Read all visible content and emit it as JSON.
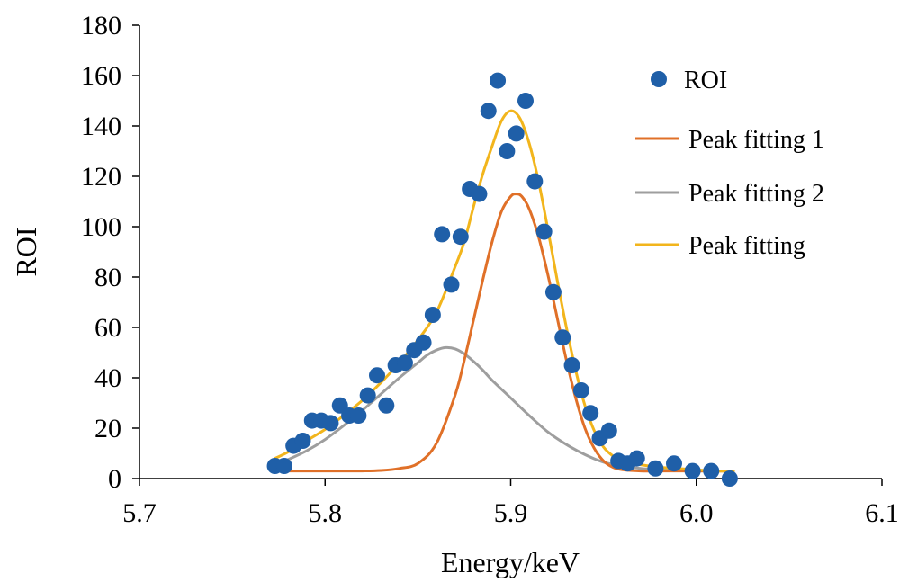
{
  "chart_data": {
    "type": "scatter",
    "xlabel": "Energy/keV",
    "ylabel": "ROI",
    "xlim": [
      5.7,
      6.1
    ],
    "ylim": [
      0,
      180
    ],
    "x_ticks": [
      "5.7",
      "5.8",
      "5.9",
      "6.0",
      "6.1"
    ],
    "y_ticks": [
      "0",
      "20",
      "40",
      "60",
      "80",
      "100",
      "120",
      "140",
      "160",
      "180"
    ],
    "grid": false,
    "legend_position": "top-right",
    "series": [
      {
        "name": "ROI",
        "kind": "scatter",
        "color": "#1f5fa8",
        "x": [
          5.773,
          5.778,
          5.783,
          5.788,
          5.793,
          5.798,
          5.803,
          5.808,
          5.813,
          5.818,
          5.823,
          5.828,
          5.833,
          5.838,
          5.843,
          5.848,
          5.853,
          5.858,
          5.863,
          5.868,
          5.873,
          5.878,
          5.883,
          5.888,
          5.893,
          5.898,
          5.903,
          5.908,
          5.913,
          5.918,
          5.923,
          5.928,
          5.933,
          5.938,
          5.943,
          5.948,
          5.953,
          5.958,
          5.963,
          5.968,
          5.978,
          5.988,
          5.998,
          6.008,
          6.018
        ],
        "y": [
          5,
          5,
          13,
          15,
          23,
          23,
          22,
          29,
          25,
          25,
          33,
          41,
          29,
          45,
          46,
          51,
          54,
          65,
          97,
          77,
          96,
          115,
          113,
          146,
          158,
          130,
          137,
          150,
          118,
          98,
          74,
          56,
          45,
          35,
          26,
          16,
          19,
          7,
          6,
          8,
          4,
          6,
          3,
          3,
          0
        ]
      },
      {
        "name": "Peak fitting 1",
        "kind": "line",
        "color": "#e07028",
        "x": [
          5.773,
          5.78,
          5.79,
          5.8,
          5.81,
          5.82,
          5.83,
          5.84,
          5.85,
          5.86,
          5.87,
          5.875,
          5.88,
          5.885,
          5.89,
          5.895,
          5.9,
          5.903,
          5.906,
          5.91,
          5.915,
          5.92,
          5.925,
          5.93,
          5.935,
          5.94,
          5.945,
          5.95,
          5.955,
          5.96,
          5.97,
          5.98,
          5.99,
          6.0,
          6.01,
          6.02
        ],
        "y": [
          3,
          3,
          3,
          3,
          3,
          3,
          3.2,
          4,
          6,
          14,
          33,
          47,
          63,
          79,
          94,
          106,
          112,
          113,
          112,
          107,
          96,
          81,
          64,
          47,
          32,
          20,
          12,
          7,
          4.5,
          3.5,
          3,
          3,
          3,
          3,
          3,
          3
        ]
      },
      {
        "name": "Peak fitting 2",
        "kind": "line",
        "color": "#9e9e9e",
        "x": [
          5.78,
          5.79,
          5.8,
          5.81,
          5.82,
          5.83,
          5.84,
          5.85,
          5.855,
          5.86,
          5.865,
          5.87,
          5.875,
          5.88,
          5.885,
          5.89,
          5.9,
          5.91,
          5.92,
          5.93,
          5.94,
          5.95,
          5.96,
          5.97,
          5.98,
          5.99,
          6.0,
          6.01,
          6.02
        ],
        "y": [
          7.5,
          11,
          15.5,
          21,
          27,
          33.5,
          40,
          46,
          49,
          51,
          52,
          51.5,
          49.5,
          46.5,
          43,
          39,
          32,
          25,
          18.5,
          13.5,
          9.5,
          6.5,
          5,
          4,
          3.5,
          3.2,
          3,
          3,
          3
        ]
      },
      {
        "name": "Peak fitting",
        "kind": "line",
        "color": "#f2b51c",
        "x": [
          5.773,
          5.78,
          5.79,
          5.8,
          5.81,
          5.82,
          5.83,
          5.84,
          5.85,
          5.86,
          5.87,
          5.875,
          5.88,
          5.885,
          5.89,
          5.895,
          5.9,
          5.905,
          5.91,
          5.915,
          5.92,
          5.925,
          5.93,
          5.935,
          5.94,
          5.945,
          5.95,
          5.955,
          5.96,
          5.97,
          5.98,
          5.99,
          6.0,
          6.01,
          6.02
        ],
        "y": [
          8,
          10.5,
          15,
          19.5,
          25,
          31,
          38,
          46,
          55,
          66,
          84,
          94,
          108,
          121,
          132,
          142,
          146,
          143,
          133,
          118,
          99,
          79,
          60,
          43,
          29,
          19,
          12.5,
          9,
          7,
          5.5,
          4.5,
          4,
          3.5,
          3,
          3
        ]
      }
    ]
  }
}
